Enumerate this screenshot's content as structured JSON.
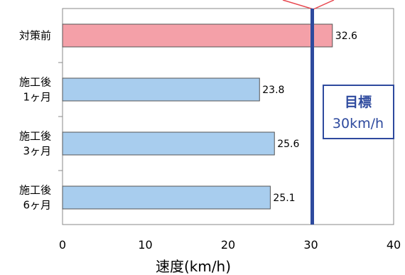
{
  "chart_data": {
    "type": "bar",
    "orientation": "horizontal",
    "categories": [
      [
        "対策前"
      ],
      [
        "施工後",
        "1ヶ月"
      ],
      [
        "施工後",
        "3ヶ月"
      ],
      [
        "施工後",
        "6ヶ月"
      ]
    ],
    "values": [
      32.6,
      23.8,
      25.6,
      25.1
    ],
    "value_labels": [
      "32.6",
      "23.8",
      "25.6",
      "25.1"
    ],
    "bar_colors": [
      "#f4a0a8",
      "#a8cdee",
      "#a8cdee",
      "#a8cdee"
    ],
    "bar_stroke": "#555555",
    "xlim": [
      0,
      40
    ],
    "xticks": [
      "0",
      "10",
      "20",
      "30",
      "40"
    ],
    "xlabel": "速度(km/h)",
    "target": {
      "value": 30,
      "line_color": "#2e4a9e",
      "label_line1": "目標",
      "label_line2": "30km/h"
    },
    "marker_color": "#e8474f",
    "grid": false
  }
}
